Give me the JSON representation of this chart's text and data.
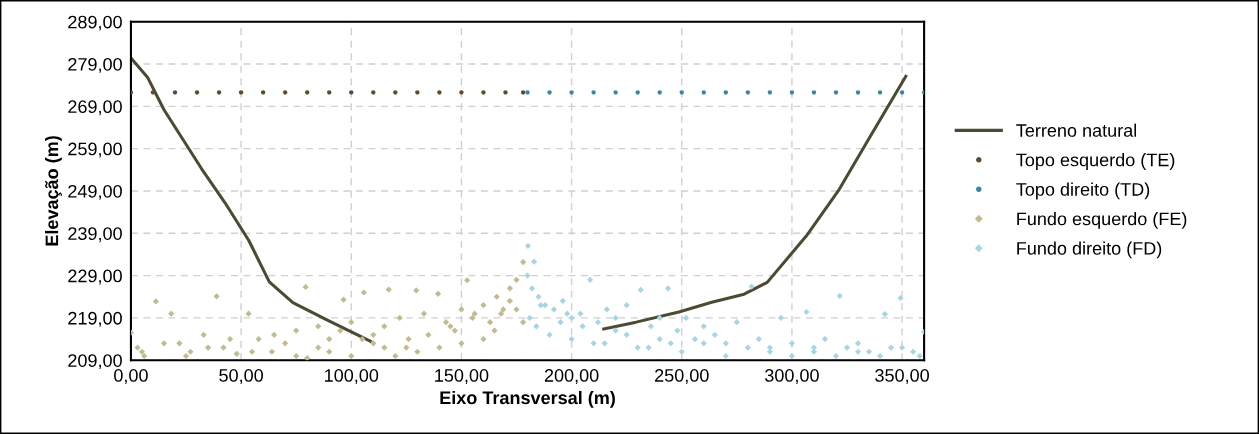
{
  "chart_data": {
    "type": "scatter",
    "xlabel": "Eixo Transversal (m)",
    "ylabel": "Elevação (m)",
    "xlim": [
      0,
      360
    ],
    "ylim": [
      209,
      289
    ],
    "xticks": [
      {
        "value": 0,
        "label": "0,00"
      },
      {
        "value": 50,
        "label": "50,00"
      },
      {
        "value": 100,
        "label": "100,00"
      },
      {
        "value": 150,
        "label": "150,00"
      },
      {
        "value": 200,
        "label": "200,00"
      },
      {
        "value": 250,
        "label": "250,00"
      },
      {
        "value": 300,
        "label": "300,00"
      },
      {
        "value": 350,
        "label": "350,00"
      }
    ],
    "yticks": [
      {
        "value": 209,
        "label": "209,00"
      },
      {
        "value": 219,
        "label": "219,00"
      },
      {
        "value": 229,
        "label": "229,00"
      },
      {
        "value": 239,
        "label": "239,00"
      },
      {
        "value": 249,
        "label": "249,00"
      },
      {
        "value": 259,
        "label": "259,00"
      },
      {
        "value": 269,
        "label": "269,00"
      },
      {
        "value": 279,
        "label": "279,00"
      },
      {
        "value": 289,
        "label": "289,00"
      }
    ],
    "grid": true,
    "legend": "right",
    "series": [
      {
        "name": "Terreno natural",
        "type": "line",
        "color": "#4d4a33",
        "marker": "none",
        "line_style": "solid",
        "x": [
          0,
          7.5,
          15,
          32,
          42.7,
          53.5,
          62.8,
          73.5,
          88.7,
          108.6,
          160,
          214.6,
          229.3,
          248.7,
          263.6,
          278.3,
          288.8,
          306.6,
          321.5,
          334.8,
          351.7
        ],
        "values": [
          280.4,
          275.9,
          268.2,
          254.3,
          246.2,
          237.3,
          227.5,
          222.6,
          218.6,
          213.5,
          null,
          216.4,
          218.0,
          220.4,
          222.7,
          224.6,
          227.4,
          238.4,
          249.4,
          261.2,
          276.1
        ]
      },
      {
        "name": "Topo esquerdo (TE)",
        "color": "#5e4a34",
        "marker": "circle",
        "x": [
          0,
          10,
          20,
          30,
          40,
          50,
          60,
          70,
          80,
          90,
          100,
          110,
          120,
          130,
          140,
          150,
          160,
          170,
          178
        ],
        "values": [
          272.3,
          272.3,
          272.3,
          272.3,
          272.3,
          272.3,
          272.3,
          272.3,
          272.3,
          272.3,
          272.3,
          272.3,
          272.3,
          272.3,
          272.3,
          272.3,
          272.3,
          272.3,
          272.3
        ]
      },
      {
        "name": "Topo direito (TD)",
        "color": "#3a86a3",
        "marker": "circle",
        "x": [
          180,
          190,
          200,
          210,
          220,
          230,
          240,
          250,
          260,
          270,
          280,
          290,
          300,
          310,
          320,
          330,
          340,
          350,
          360
        ],
        "values": [
          272.3,
          272.3,
          272.3,
          272.3,
          272.3,
          272.3,
          272.3,
          272.3,
          272.3,
          272.3,
          272.3,
          272.3,
          272.3,
          272.3,
          272.3,
          272.3,
          272.3,
          272.3,
          272.3
        ]
      },
      {
        "name": "Fundo esquerdo (FE)",
        "color": "#c2bb8e",
        "marker": "diamond",
        "x": [
          0,
          3,
          6,
          11.3,
          18.3,
          22,
          27,
          33,
          38.9,
          42,
          48,
          53.4,
          58,
          64,
          70,
          75,
          79.3,
          85,
          90,
          96.5,
          100,
          105.7,
          110,
          115,
          117,
          122,
          126,
          129.5,
          133,
          139.4,
          143,
          147,
          150,
          152.6,
          156,
          160,
          163,
          166,
          169,
          172,
          175,
          178,
          5,
          15,
          25,
          35,
          45,
          55,
          65,
          75,
          85,
          95,
          105,
          115,
          125,
          135,
          145,
          155,
          165,
          175,
          178,
          172,
          168,
          160,
          150,
          140,
          130,
          120,
          110,
          100,
          90,
          80
        ],
        "values": [
          215.5,
          212,
          210,
          222.9,
          220,
          213,
          211,
          215,
          224.1,
          212,
          210.5,
          220,
          214,
          211,
          213,
          216,
          226.3,
          217,
          214,
          223.3,
          218,
          225,
          215,
          212,
          225.7,
          219,
          214,
          225.5,
          220,
          224.7,
          218,
          216,
          221,
          227.9,
          220,
          222,
          218,
          224,
          221,
          226,
          228,
          232.2,
          211,
          213,
          210,
          212,
          214,
          211,
          215,
          210,
          212,
          216,
          214,
          217,
          212,
          215,
          217,
          219,
          216,
          221,
          218,
          223,
          220,
          214,
          213,
          212,
          211,
          210,
          213,
          210,
          211,
          209.5
        ]
      },
      {
        "name": "Fundo direito (FD)",
        "color": "#a7d6e3",
        "marker": "diamond",
        "x": [
          180.2,
          183,
          180,
          182,
          185,
          188,
          192,
          196,
          200,
          204,
          208.4,
          212,
          216,
          220,
          225,
          231.4,
          236,
          240,
          243.8,
          248,
          252,
          256,
          260,
          265,
          270,
          275,
          281.7,
          285,
          290,
          295,
          300,
          306.6,
          310,
          315,
          321.7,
          325,
          330,
          335,
          342.2,
          345,
          349.3,
          355,
          360,
          181,
          184,
          190,
          195,
          200,
          210,
          220,
          230,
          240,
          250,
          260,
          270,
          280,
          290,
          300,
          310,
          320,
          330,
          340,
          350,
          358,
          186,
          198,
          205,
          215,
          225,
          235,
          245
        ],
        "values": [
          236,
          232.3,
          229,
          226,
          224,
          222,
          221,
          223,
          219,
          220,
          228,
          218,
          221,
          219,
          222,
          225.6,
          217,
          219,
          226,
          216,
          219,
          214,
          217,
          215,
          213,
          218,
          226.4,
          214,
          212,
          219,
          213,
          220.4,
          211,
          214,
          224.2,
          212,
          213,
          211,
          219.9,
          212,
          223.7,
          211,
          215.7,
          219,
          217,
          215,
          218,
          214,
          213,
          216,
          212,
          214,
          211,
          213,
          210,
          212,
          211,
          210,
          212,
          210,
          211,
          210,
          212,
          210,
          222,
          220,
          217,
          213,
          215,
          212,
          213
        ]
      }
    ]
  }
}
